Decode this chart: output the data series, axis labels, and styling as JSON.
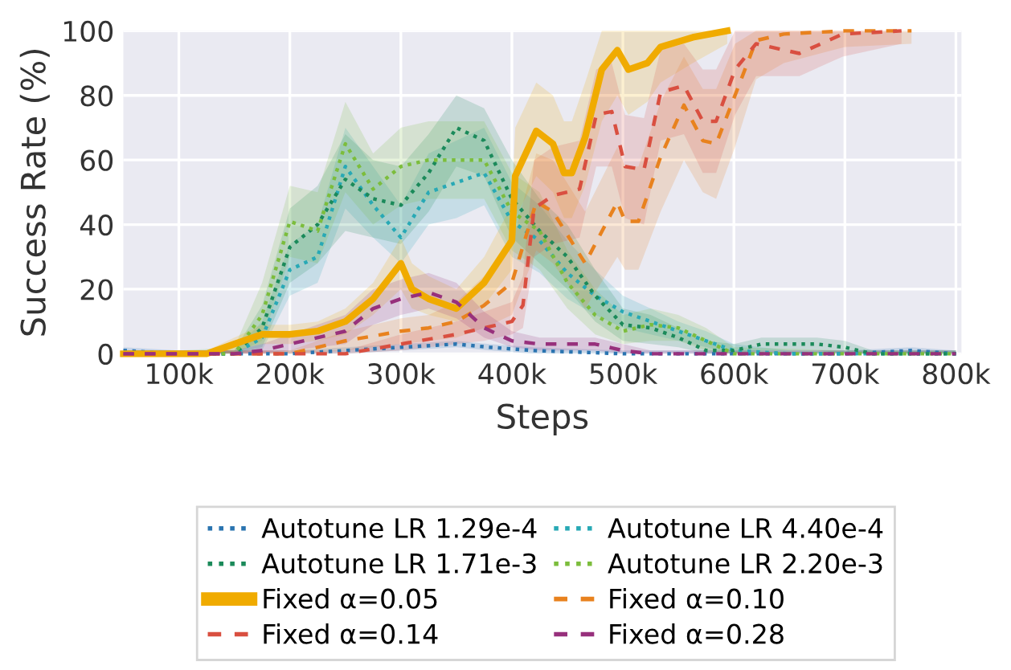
{
  "chart_data": {
    "type": "line",
    "xlabel": "Steps",
    "ylabel": "Success Rate (%)",
    "xlim": [
      50000,
      805000
    ],
    "ylim": [
      0,
      100
    ],
    "xticks": [
      {
        "value": 100000,
        "label": "100k"
      },
      {
        "value": 200000,
        "label": "200k"
      },
      {
        "value": 300000,
        "label": "300k"
      },
      {
        "value": 400000,
        "label": "400k"
      },
      {
        "value": 500000,
        "label": "500k"
      },
      {
        "value": 600000,
        "label": "600k"
      },
      {
        "value": 700000,
        "label": "700k"
      },
      {
        "value": 800000,
        "label": "800k"
      }
    ],
    "yticks": [
      0,
      20,
      40,
      60,
      80,
      100
    ],
    "grid": true,
    "legend": "bottom",
    "series": [
      {
        "name": "Autotune LR 1.29e-4",
        "color": "#2a74b0",
        "line_style": "dotted",
        "x": [
          50000,
          100000,
          150000,
          200000,
          250000,
          300000,
          350000,
          380000,
          420000,
          500000,
          600000,
          700000,
          760000,
          800000
        ],
        "values": [
          1,
          0,
          0,
          0,
          1,
          2,
          3,
          2,
          1,
          0,
          0,
          0,
          1,
          0
        ],
        "lower": [
          0,
          0,
          0,
          0,
          0,
          1,
          2,
          1,
          0,
          0,
          0,
          0,
          0,
          0
        ],
        "upper": [
          2,
          1,
          1,
          1,
          2,
          3,
          4,
          3,
          2,
          1,
          1,
          1,
          2,
          1
        ]
      },
      {
        "name": "Autotune LR 4.40e-4",
        "color": "#28a9b5",
        "line_style": "dotted",
        "x": [
          50000,
          100000,
          150000,
          175000,
          200000,
          225000,
          250000,
          275000,
          300000,
          325000,
          350000,
          375000,
          400000,
          425000,
          450000,
          475000,
          500000,
          525000,
          550000,
          575000,
          600000,
          650000,
          700000,
          750000,
          800000
        ],
        "values": [
          0,
          0,
          0,
          5,
          26,
          30,
          58,
          46,
          36,
          50,
          53,
          56,
          41,
          35,
          25,
          18,
          13,
          10,
          7,
          4,
          1,
          0,
          0,
          0,
          0
        ],
        "lower": [
          0,
          0,
          0,
          1,
          18,
          22,
          45,
          36,
          28,
          40,
          42,
          46,
          30,
          25,
          17,
          12,
          8,
          6,
          4,
          2,
          0,
          0,
          0,
          0,
          0
        ],
        "upper": [
          1,
          1,
          1,
          10,
          34,
          40,
          70,
          58,
          46,
          62,
          66,
          70,
          53,
          46,
          35,
          26,
          18,
          14,
          10,
          7,
          3,
          1,
          1,
          1,
          1
        ]
      },
      {
        "name": "Autotune LR 1.71e-3",
        "color": "#1b8a5a",
        "line_style": "dotted",
        "x": [
          50000,
          100000,
          150000,
          175000,
          200000,
          225000,
          250000,
          275000,
          300000,
          325000,
          350000,
          375000,
          400000,
          425000,
          450000,
          475000,
          500000,
          525000,
          550000,
          575000,
          600000,
          625000,
          650000,
          675000,
          700000,
          725000,
          800000
        ],
        "values": [
          0,
          0,
          0,
          8,
          33,
          40,
          54,
          48,
          46,
          56,
          70,
          66,
          48,
          38,
          30,
          18,
          9,
          8,
          5,
          1,
          1,
          3,
          3,
          3,
          2,
          0,
          0
        ],
        "lower": [
          0,
          0,
          0,
          2,
          22,
          28,
          38,
          36,
          34,
          44,
          58,
          55,
          36,
          28,
          20,
          10,
          4,
          3,
          2,
          0,
          0,
          1,
          1,
          1,
          0,
          0,
          0
        ],
        "upper": [
          1,
          1,
          1,
          15,
          45,
          52,
          68,
          60,
          58,
          68,
          80,
          76,
          60,
          48,
          40,
          26,
          14,
          12,
          8,
          4,
          3,
          5,
          5,
          5,
          4,
          1,
          1
        ]
      },
      {
        "name": "Autotune LR 2.20e-3",
        "color": "#7cbd3c",
        "line_style": "dotted",
        "x": [
          50000,
          100000,
          150000,
          175000,
          200000,
          225000,
          250000,
          275000,
          300000,
          325000,
          350000,
          375000,
          400000,
          425000,
          450000,
          475000,
          500000,
          525000,
          550000,
          575000,
          600000,
          700000,
          800000
        ],
        "values": [
          0,
          0,
          0,
          12,
          41,
          38,
          65,
          51,
          58,
          60,
          60,
          60,
          44,
          38,
          22,
          12,
          7,
          9,
          8,
          4,
          0,
          0,
          0
        ],
        "lower": [
          0,
          0,
          0,
          4,
          30,
          28,
          50,
          40,
          46,
          48,
          48,
          48,
          32,
          26,
          14,
          6,
          3,
          4,
          4,
          1,
          0,
          0,
          0
        ],
        "upper": [
          1,
          1,
          2,
          22,
          52,
          50,
          78,
          62,
          70,
          72,
          72,
          72,
          56,
          50,
          32,
          20,
          12,
          14,
          12,
          8,
          2,
          1,
          1
        ]
      },
      {
        "name": "Fixed α=0.05",
        "color": "#f0ab00",
        "line_style": "solid",
        "x": [
          50000,
          100000,
          125000,
          150000,
          175000,
          200000,
          225000,
          250000,
          275000,
          300000,
          310000,
          325000,
          350000,
          375000,
          400000,
          403000,
          422000,
          437000,
          447000,
          454000,
          466000,
          481000,
          495000,
          505000,
          522000,
          534000,
          563000,
          594000
        ],
        "values": [
          0,
          0,
          0,
          3,
          6,
          6,
          7,
          10,
          17,
          28,
          20,
          17,
          14,
          22,
          35,
          55,
          69,
          65,
          56,
          56,
          67,
          88,
          94,
          88,
          90,
          95,
          98,
          100
        ],
        "lower": [
          0,
          0,
          0,
          1,
          3,
          3,
          4,
          6,
          12,
          20,
          14,
          12,
          10,
          15,
          26,
          42,
          55,
          50,
          42,
          42,
          52,
          72,
          80,
          74,
          78,
          84,
          90,
          96
        ],
        "upper": [
          1,
          1,
          1,
          5,
          9,
          9,
          10,
          14,
          22,
          36,
          28,
          24,
          20,
          30,
          46,
          70,
          84,
          80,
          72,
          72,
          84,
          100,
          100,
          100,
          100,
          100,
          100,
          100
        ]
      },
      {
        "name": "Fixed α=0.10",
        "color": "#e8821e",
        "line_style": "dashed",
        "x": [
          50000,
          100000,
          150000,
          200000,
          250000,
          300000,
          325000,
          350000,
          375000,
          400000,
          422000,
          437000,
          466000,
          495000,
          502000,
          514000,
          534000,
          555000,
          572000,
          584000,
          601000,
          620000,
          645000,
          700000,
          760000
        ],
        "values": [
          0,
          0,
          0,
          0,
          4,
          7,
          8,
          10,
          15,
          22,
          47,
          44,
          28,
          47,
          41,
          41,
          61,
          77,
          66,
          65,
          80,
          97,
          99,
          100,
          100
        ],
        "lower": [
          0,
          0,
          0,
          0,
          1,
          3,
          4,
          5,
          8,
          12,
          32,
          28,
          14,
          30,
          26,
          26,
          44,
          60,
          50,
          48,
          64,
          85,
          90,
          95,
          96
        ],
        "upper": [
          1,
          1,
          1,
          1,
          7,
          11,
          12,
          16,
          24,
          34,
          62,
          60,
          44,
          64,
          58,
          58,
          78,
          92,
          82,
          82,
          96,
          100,
          100,
          100,
          100
        ]
      },
      {
        "name": "Fixed α=0.14",
        "color": "#d94f40",
        "line_style": "dashed",
        "x": [
          50000,
          100000,
          150000,
          200000,
          250000,
          300000,
          350000,
          375000,
          400000,
          410000,
          420000,
          437000,
          461000,
          476000,
          490000,
          502000,
          519000,
          534000,
          555000,
          572000,
          584000,
          601000,
          620000,
          659000,
          698000,
          751000
        ],
        "values": [
          0,
          0,
          0,
          0,
          0,
          3,
          6,
          8,
          10,
          15,
          45,
          49,
          51,
          74,
          75,
          58,
          57,
          81,
          83,
          72,
          72,
          88,
          96,
          93,
          99,
          100
        ],
        "lower": [
          0,
          0,
          0,
          0,
          0,
          1,
          3,
          4,
          6,
          8,
          30,
          34,
          36,
          58,
          58,
          42,
          40,
          66,
          68,
          56,
          56,
          74,
          86,
          86,
          92,
          96
        ],
        "upper": [
          1,
          1,
          1,
          1,
          1,
          6,
          10,
          13,
          16,
          24,
          60,
          64,
          66,
          88,
          90,
          74,
          73,
          94,
          96,
          88,
          88,
          100,
          100,
          100,
          100,
          100
        ]
      },
      {
        "name": "Fixed α=0.28",
        "color": "#97307c",
        "line_style": "dashed",
        "x": [
          50000,
          100000,
          150000,
          175000,
          200000,
          250000,
          275000,
          300000,
          325000,
          350000,
          375000,
          400000,
          425000,
          450000,
          475000,
          500000,
          525000,
          600000,
          700000,
          800000
        ],
        "values": [
          0,
          0,
          0,
          1,
          3,
          7,
          14,
          17,
          19,
          16,
          8,
          4,
          3,
          3,
          3,
          1,
          0,
          0,
          0,
          0
        ],
        "lower": [
          0,
          0,
          0,
          0,
          1,
          3,
          9,
          12,
          14,
          11,
          5,
          2,
          1,
          1,
          1,
          0,
          0,
          0,
          0,
          0
        ],
        "upper": [
          1,
          1,
          1,
          3,
          6,
          12,
          20,
          23,
          25,
          22,
          13,
          7,
          5,
          5,
          5,
          3,
          1,
          1,
          1,
          1
        ]
      }
    ]
  }
}
